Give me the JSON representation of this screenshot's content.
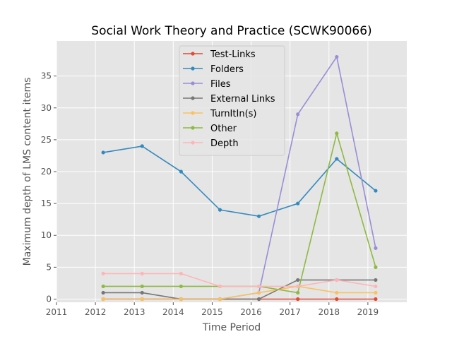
{
  "chart_data": {
    "type": "line",
    "title": "Social Work Theory and Practice (SCWK90066)",
    "xlabel": "Time Period",
    "ylabel": "Maximum depth of LMS content items",
    "xlim": [
      2011,
      2020
    ],
    "ylim": [
      -0.5,
      40.5
    ],
    "x_ticks": [
      2011,
      2012,
      2013,
      2014,
      2015,
      2016,
      2017,
      2018,
      2019
    ],
    "y_ticks": [
      0,
      5,
      10,
      15,
      20,
      25,
      30,
      35
    ],
    "grid": true,
    "legend_position": "top-center",
    "x": [
      2012.2,
      2013.2,
      2014.2,
      2015.2,
      2016.2,
      2017.2,
      2018.2,
      2019.2
    ],
    "series": [
      {
        "name": "Test-Links",
        "color": "#E24A33",
        "values": [
          0,
          0,
          0,
          0,
          0,
          0,
          0,
          0
        ]
      },
      {
        "name": "Folders",
        "color": "#348ABD",
        "values": [
          23,
          24,
          20,
          14,
          13,
          15,
          22,
          17
        ]
      },
      {
        "name": "Files",
        "color": "#988ED5",
        "values": [
          0,
          0,
          0,
          0,
          1,
          29,
          38,
          8
        ]
      },
      {
        "name": "External Links",
        "color": "#777777",
        "values": [
          1,
          1,
          0,
          0,
          0,
          3,
          3,
          3
        ]
      },
      {
        "name": "TurnItIn(s)",
        "color": "#FBC15E",
        "values": [
          0,
          0,
          0,
          0,
          1,
          2,
          1,
          1
        ]
      },
      {
        "name": "Other",
        "color": "#8EBA42",
        "values": [
          2,
          2,
          2,
          2,
          2,
          1,
          26,
          5
        ]
      },
      {
        "name": "Depth",
        "color": "#FFB5B8",
        "values": [
          4,
          4,
          4,
          2,
          2,
          2,
          3,
          2
        ]
      }
    ],
    "colors": {
      "plot_background": "#E5E5E5",
      "grid": "#FFFFFF",
      "legend_background": "#E5E5E5"
    }
  }
}
